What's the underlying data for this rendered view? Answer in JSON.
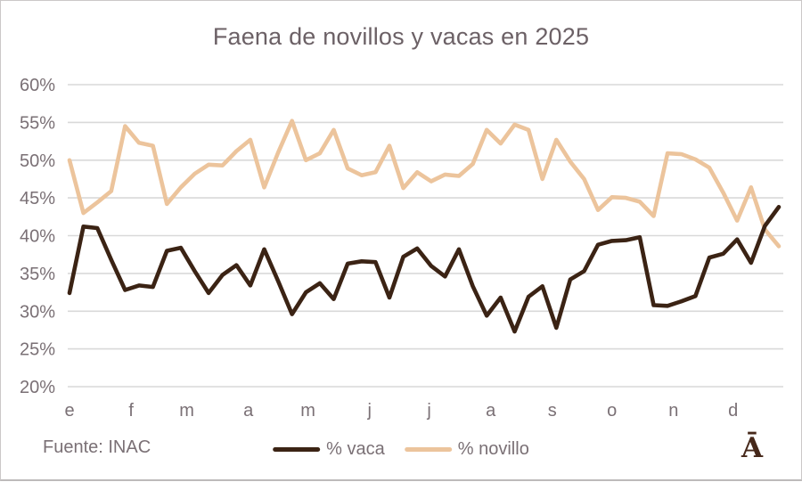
{
  "title": "Faena de novillos y vacas en 2025",
  "source": "Fuente: INAC",
  "logo": "Ā",
  "colors": {
    "vaca_line": "#3B2314",
    "novillo_line": "#ECC49C",
    "grid": "#D9D9D9",
    "axis_text": "#7A7075",
    "title_text": "#6C6166",
    "logo_text": "#46281A",
    "border": "#CBC8C8"
  },
  "legend": [
    {
      "label": "% vaca",
      "color": "#3B2314"
    },
    {
      "label": "% novillo",
      "color": "#ECC49C"
    }
  ],
  "chart_data": {
    "type": "line",
    "title": "Faena de novillos y vacas en 2025",
    "x_axis": {
      "tick_labels": [
        "e",
        "f",
        "m",
        "a",
        "m",
        "j",
        "j",
        "a",
        "s",
        "o",
        "n",
        "d"
      ],
      "description": "weekly data, January to December 2025"
    },
    "y_axis": {
      "unit": "%",
      "min": 20,
      "max": 60,
      "step": 5,
      "ticks": [
        60,
        55,
        50,
        45,
        40,
        35,
        30,
        25,
        20
      ],
      "tick_labels": [
        "60%",
        "55%",
        "50%",
        "45%",
        "40%",
        "35%",
        "30%",
        "25%",
        "20%"
      ]
    },
    "grid": true,
    "legend_position": "bottom-center",
    "series": [
      {
        "name": "% vaca",
        "color": "#3B2314",
        "values": [
          32.4,
          41.2,
          41.0,
          36.8,
          32.8,
          33.4,
          33.2,
          38.0,
          38.4,
          35.3,
          32.4,
          34.8,
          36.1,
          33.4,
          38.2,
          34.0,
          29.6,
          32.5,
          33.7,
          31.6,
          36.3,
          36.6,
          36.5,
          31.8,
          37.2,
          38.3,
          36.0,
          34.6,
          38.2,
          33.3,
          29.4,
          31.8,
          27.3,
          31.9,
          33.3,
          27.8,
          34.2,
          35.3,
          38.8,
          39.3,
          39.4,
          39.8,
          30.8,
          30.7,
          31.3,
          32.0,
          37.1,
          37.6,
          39.5,
          36.4,
          41.3,
          43.8
        ]
      },
      {
        "name": "% novillo",
        "color": "#ECC49C",
        "values": [
          50.0,
          43.0,
          44.4,
          45.9,
          54.5,
          52.3,
          51.9,
          44.2,
          46.4,
          48.2,
          49.4,
          49.3,
          51.2,
          52.7,
          46.4,
          51.0,
          55.2,
          50.0,
          50.9,
          54.0,
          48.9,
          48.0,
          48.4,
          51.9,
          46.3,
          48.4,
          47.2,
          48.1,
          47.9,
          49.5,
          54.0,
          52.2,
          54.7,
          54.0,
          47.5,
          52.7,
          49.8,
          47.5,
          43.4,
          45.1,
          45.0,
          44.5,
          42.6,
          50.9,
          50.8,
          50.1,
          49.0,
          45.7,
          42.0,
          46.4,
          40.8,
          38.6
        ]
      }
    ]
  }
}
